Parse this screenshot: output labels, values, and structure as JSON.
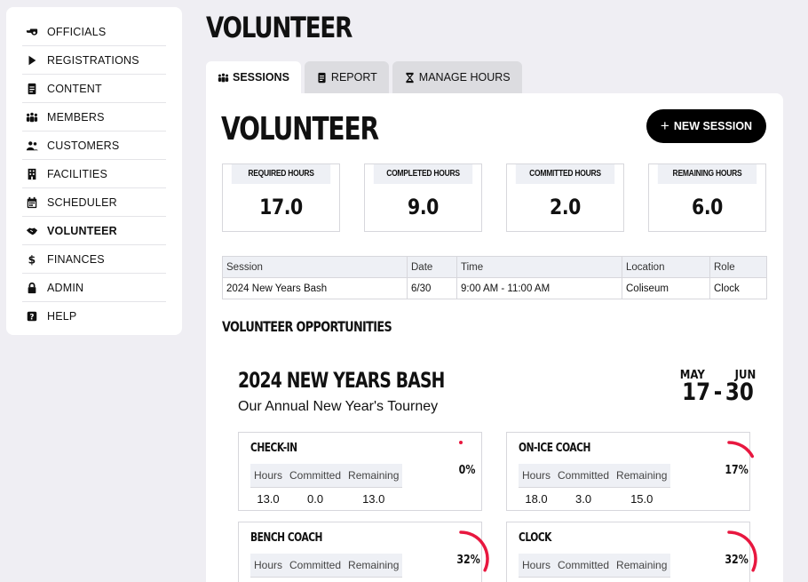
{
  "sidebar": {
    "items": [
      {
        "label": "OFFICIALS",
        "icon": "whistle-icon",
        "active": false
      },
      {
        "label": "REGISTRATIONS",
        "icon": "play-icon",
        "active": false
      },
      {
        "label": "CONTENT",
        "icon": "document-icon",
        "active": false
      },
      {
        "label": "MEMBERS",
        "icon": "people-group-icon",
        "active": false
      },
      {
        "label": "CUSTOMERS",
        "icon": "users-icon",
        "active": false
      },
      {
        "label": "FACILITIES",
        "icon": "building-icon",
        "active": false
      },
      {
        "label": "SCHEDULER",
        "icon": "calendar-icon",
        "active": false
      },
      {
        "label": "VOLUNTEER",
        "icon": "handshake-icon",
        "active": true
      },
      {
        "label": "FINANCES",
        "icon": "dollar-icon",
        "active": false
      },
      {
        "label": "ADMIN",
        "icon": "lock-icon",
        "active": false
      },
      {
        "label": "HELP",
        "icon": "help-icon",
        "active": false
      }
    ]
  },
  "page": {
    "title": "VOLUNTEER"
  },
  "tabs": [
    {
      "label": "SESSIONS",
      "icon": "people-group-icon",
      "active": true
    },
    {
      "label": "REPORT",
      "icon": "document-icon",
      "active": false
    },
    {
      "label": "MANAGE HOURS",
      "icon": "hourglass-icon",
      "active": false
    }
  ],
  "panel": {
    "title": "VOLUNTEER",
    "new_session_label": "NEW SESSION",
    "new_session_plus": "+"
  },
  "stats": [
    {
      "label": "REQUIRED HOURS",
      "value": "17.0"
    },
    {
      "label": "COMPLETED HOURS",
      "value": "9.0"
    },
    {
      "label": "COMMITTED HOURS",
      "value": "2.0"
    },
    {
      "label": "REMAINING HOURS",
      "value": "6.0"
    }
  ],
  "sessions_table": {
    "headers": [
      "Session",
      "Date",
      "Time",
      "Location",
      "Role"
    ],
    "rows": [
      [
        "2024 New Years Bash",
        "6/30",
        "9:00 AM - 11:00 AM",
        "Coliseum",
        "Clock"
      ]
    ]
  },
  "opportunities": {
    "heading": "VOLUNTEER OPPORTUNITIES",
    "event": {
      "title": "2024 NEW YEARS BASH",
      "subtitle": "Our Annual New Year's Tourney",
      "start_month": "MAY",
      "start_day": "17",
      "separator": "-",
      "end_month": "JUN",
      "end_day": "30"
    },
    "role_headers": [
      "Hours",
      "Committed",
      "Remaining"
    ],
    "roles": [
      {
        "name": "CHECK-IN",
        "hours": "13.0",
        "committed": "0.0",
        "remaining": "13.0",
        "percent_label": "0%",
        "percent": 0
      },
      {
        "name": "ON-ICE COACH",
        "hours": "18.0",
        "committed": "3.0",
        "remaining": "15.0",
        "percent_label": "17%",
        "percent": 17
      },
      {
        "name": "BENCH COACH",
        "hours": "",
        "committed": "",
        "remaining": "",
        "percent_label": "32%",
        "percent": 32
      },
      {
        "name": "CLOCK",
        "hours": "",
        "committed": "",
        "remaining": "",
        "percent_label": "32%",
        "percent": 32
      }
    ],
    "gauge_color": "#e8173f"
  }
}
